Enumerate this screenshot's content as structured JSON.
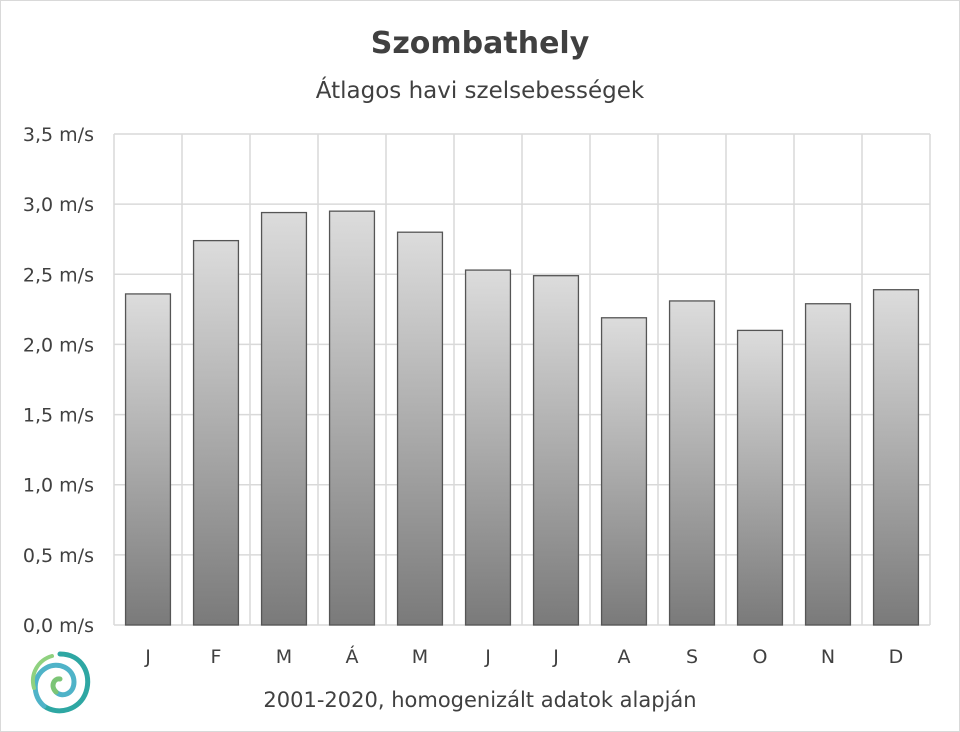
{
  "chart_data": {
    "type": "bar",
    "title": "Szombathely",
    "subtitle": "Átlagos havi szelsebességek",
    "footnote": "2001-2020, homogenizált adatok alapján",
    "categories": [
      "J",
      "F",
      "M",
      "Á",
      "M",
      "J",
      "J",
      "A",
      "S",
      "O",
      "N",
      "D"
    ],
    "values": [
      2.36,
      2.74,
      2.94,
      2.95,
      2.8,
      2.53,
      2.49,
      2.19,
      2.31,
      2.1,
      2.29,
      2.39
    ],
    "yticks": [
      "0,0 m/s",
      "0,5 m/s",
      "1,0 m/s",
      "1,5 m/s",
      "2,0 m/s",
      "2,5 m/s",
      "3,0 m/s",
      "3,5 m/s"
    ],
    "ylim": [
      0,
      3.5
    ],
    "grid": true,
    "colors": {
      "bar_top": "#dcdcdc",
      "bar_bottom": "#7a7a7a",
      "bar_edge": "#555555",
      "grid": "#d9d9d9"
    }
  },
  "logo": {
    "icon": "swirl-logo-icon"
  }
}
